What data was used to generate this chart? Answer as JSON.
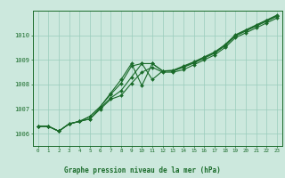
{
  "bg_color": "#cce8dd",
  "grid_color": "#99ccbb",
  "line_color": "#1a6b2a",
  "xlabel": "Graphe pression niveau de la mer (hPa)",
  "xlim": [
    -0.5,
    23.5
  ],
  "ylim": [
    1005.5,
    1011.0
  ],
  "yticks": [
    1006,
    1007,
    1008,
    1009,
    1010
  ],
  "xticks": [
    0,
    1,
    2,
    3,
    4,
    5,
    6,
    7,
    8,
    9,
    10,
    11,
    12,
    13,
    14,
    15,
    16,
    17,
    18,
    19,
    20,
    21,
    22,
    23
  ],
  "series": [
    [
      1006.3,
      1006.3,
      1006.1,
      1006.4,
      1006.5,
      1006.6,
      1007.0,
      1007.4,
      1007.55,
      1008.05,
      1008.5,
      1008.7,
      1008.5,
      1008.5,
      1008.6,
      1008.8,
      1009.0,
      1009.2,
      1009.5,
      1009.9,
      1010.1,
      1010.3,
      1010.5,
      1010.7
    ],
    [
      1006.3,
      1006.3,
      1006.1,
      1006.4,
      1006.5,
      1006.6,
      1007.05,
      1007.45,
      1007.75,
      1008.3,
      1008.85,
      1008.85,
      1008.55,
      1008.55,
      1008.7,
      1008.87,
      1009.07,
      1009.27,
      1009.57,
      1009.97,
      1010.17,
      1010.37,
      1010.57,
      1010.77
    ],
    [
      1006.3,
      1006.3,
      1006.1,
      1006.4,
      1006.5,
      1006.7,
      1007.1,
      1007.6,
      1008.05,
      1008.75,
      1008.85,
      1008.2,
      1008.55,
      1008.55,
      1008.72,
      1008.9,
      1009.1,
      1009.3,
      1009.6,
      1010.0,
      1010.2,
      1010.4,
      1010.6,
      1010.8
    ],
    [
      1006.3,
      1006.3,
      1006.1,
      1006.4,
      1006.5,
      1006.7,
      1007.1,
      1007.65,
      1008.2,
      1008.85,
      1007.95,
      1008.85,
      1008.55,
      1008.58,
      1008.75,
      1008.92,
      1009.12,
      1009.32,
      1009.62,
      1010.02,
      1010.22,
      1010.42,
      1010.62,
      1010.82
    ]
  ]
}
